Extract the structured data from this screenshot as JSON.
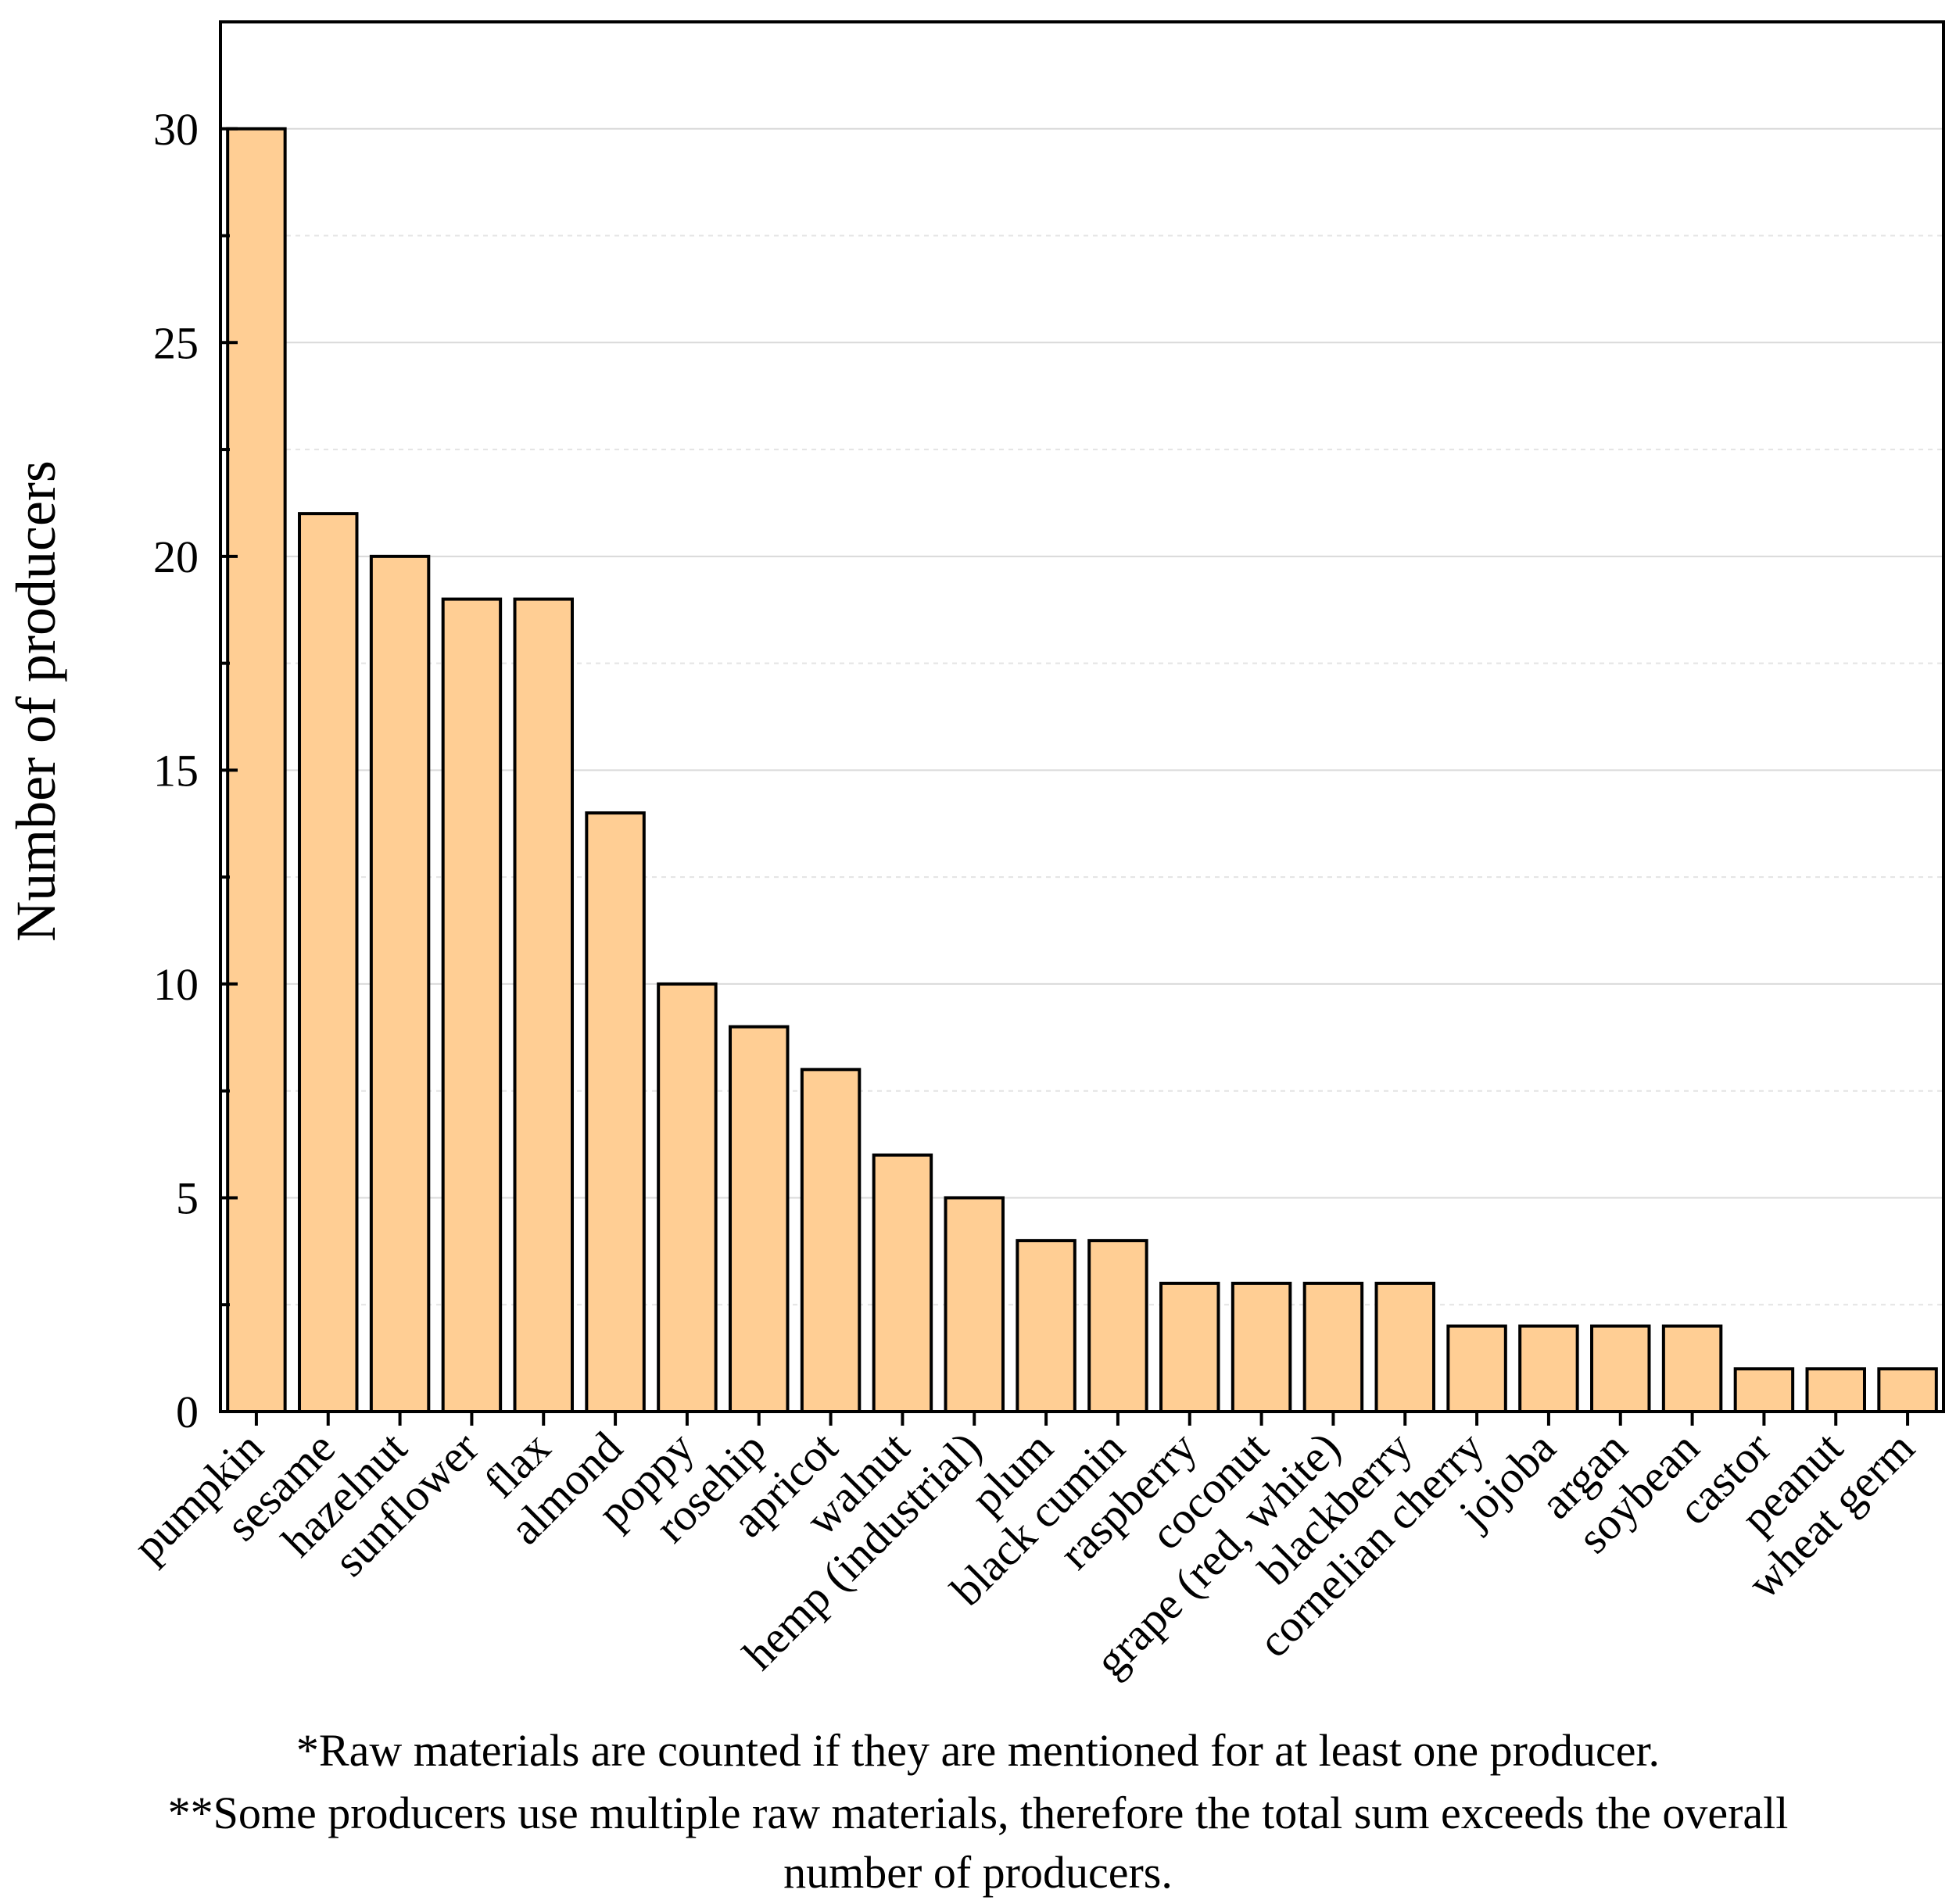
{
  "chart_data": {
    "type": "bar",
    "categories": [
      "pumpkin",
      "sesame",
      "hazelnut",
      "sunflower",
      "flax",
      "almond",
      "poppy",
      "rosehip",
      "apricot",
      "walnut",
      "hemp (industrial)",
      "plum",
      "black cumin",
      "raspberry",
      "coconut",
      "grape (red, white)",
      "blackberry",
      "cornelian cherry",
      "jojoba",
      "argan",
      "soybean",
      "castor",
      "peanut",
      "wheat germ"
    ],
    "values": [
      30,
      21,
      20,
      19,
      19,
      14,
      10,
      9,
      8,
      6,
      5,
      4,
      4,
      3,
      3,
      3,
      3,
      2,
      2,
      2,
      2,
      1,
      1,
      1
    ],
    "ylabel": "Number of producers",
    "xlabel": "",
    "ylim": [
      0,
      32.5
    ],
    "yticks": [
      0,
      5,
      10,
      15,
      20,
      25,
      30
    ],
    "grid": true,
    "bar_color": "#FFCE94",
    "bar_edge_color": "#000000"
  },
  "footnotes": {
    "line1": "*Raw materials are counted if they are mentioned for at least one producer.",
    "line2": "**Some producers use multiple raw materials, therefore the total sum exceeds the overall",
    "line3": "number of producers."
  }
}
